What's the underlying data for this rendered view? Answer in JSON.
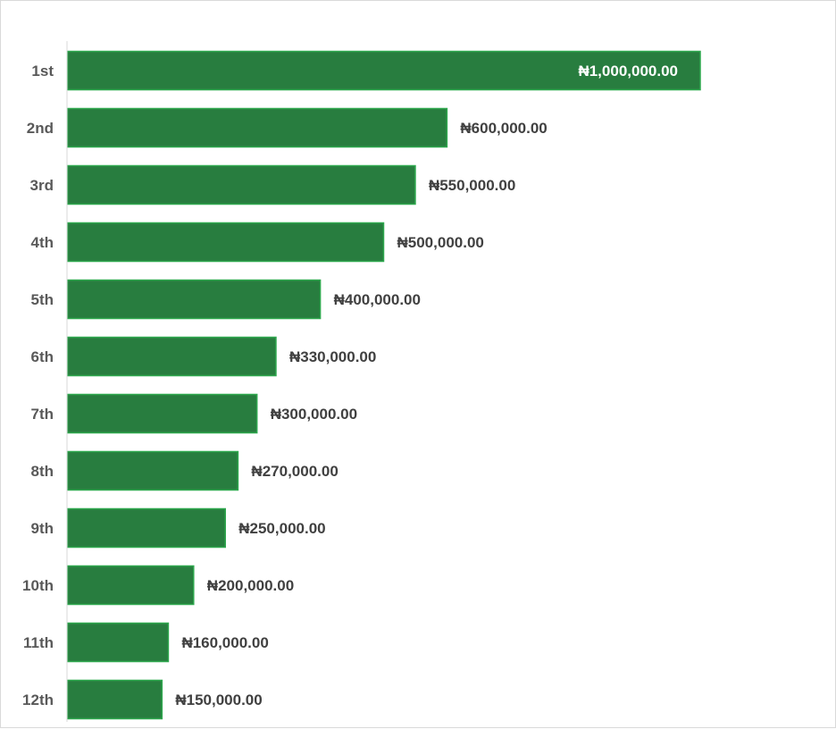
{
  "chart_data": {
    "type": "bar",
    "orientation": "horizontal",
    "title": "",
    "xlabel": "",
    "ylabel": "",
    "categories": [
      "1st",
      "2nd",
      "3rd",
      "4th",
      "5th",
      "6th",
      "7th",
      "8th",
      "9th",
      "10th",
      "11th",
      "12th"
    ],
    "values": [
      1000000,
      600000,
      550000,
      500000,
      400000,
      330000,
      300000,
      270000,
      250000,
      200000,
      160000,
      150000
    ],
    "data_labels": [
      "₦1,000,000.00",
      "₦600,000.00",
      "₦550,000.00",
      "₦500,000.00",
      "₦400,000.00",
      "₦330,000.00",
      "₦300,000.00",
      "₦270,000.00",
      "₦250,000.00",
      "₦200,000.00",
      "₦160,000.00",
      "₦150,000.00"
    ],
    "xlim": [
      0,
      1000000
    ],
    "grid": false,
    "legend": "none",
    "colors": {
      "bar_fill": "#287d3f",
      "bar_stroke": "#2ea84e",
      "axis_line": "#d9d9d9",
      "category_text": "#595959",
      "value_text": "#404040",
      "value_text_inside": "#ffffff"
    }
  }
}
